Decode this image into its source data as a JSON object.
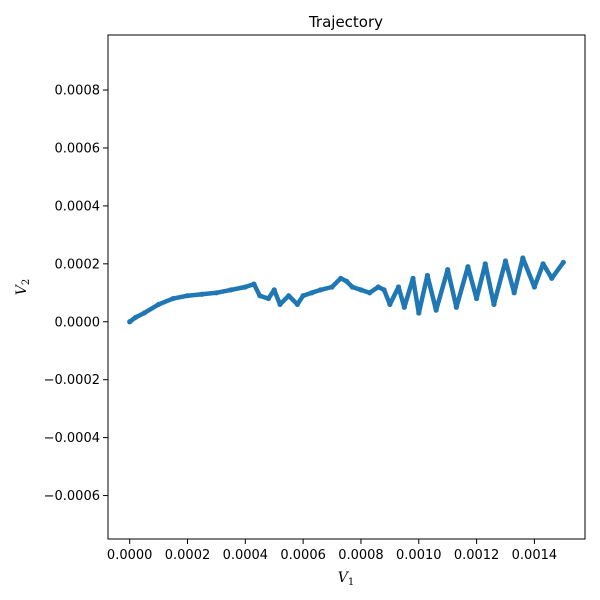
{
  "chart_data": {
    "type": "line",
    "title": "Trajectory",
    "xlabel": "V",
    "xlabel_sub": "1",
    "ylabel": "V",
    "ylabel_sub": "2",
    "xlim": [
      -7.5e-05,
      0.001575
    ],
    "ylim": [
      -0.00075,
      0.00099
    ],
    "xticks": [
      "0.0000",
      "0.0002",
      "0.0004",
      "0.0006",
      "0.0008",
      "0.0010",
      "0.0012",
      "0.0014"
    ],
    "yticks": [
      "−0.0006",
      "−0.0004",
      "−0.0002",
      "0.0000",
      "0.0002",
      "0.0004",
      "0.0006",
      "0.0008"
    ],
    "grid": false,
    "series": [
      {
        "color": "#1f77b4",
        "x": [
          0.0,
          2e-05,
          5e-05,
          0.0001,
          0.00015,
          0.0002,
          0.00025,
          0.0003,
          0.00035,
          0.0004,
          0.00043,
          0.00045,
          0.00048,
          0.0005,
          0.00052,
          0.00055,
          0.00058,
          0.0006,
          0.00063,
          0.00066,
          0.0007,
          0.00073,
          0.00075,
          0.00077,
          0.0008,
          0.00083,
          0.00086,
          0.00088,
          0.0009,
          0.00093,
          0.00095,
          0.00098,
          0.001,
          0.00103,
          0.00106,
          0.0011,
          0.00113,
          0.00117,
          0.0012,
          0.00123,
          0.00126,
          0.0013,
          0.00133,
          0.00136,
          0.0014,
          0.00143,
          0.00146,
          0.0015
        ],
        "y": [
          0.0,
          1.5e-05,
          3e-05,
          6e-05,
          8e-05,
          9e-05,
          9.5e-05,
          0.0001,
          0.00011,
          0.00012,
          0.00013,
          9e-05,
          8e-05,
          0.00011,
          6e-05,
          9e-05,
          6e-05,
          9e-05,
          0.0001,
          0.00011,
          0.00012,
          0.00015,
          0.00014,
          0.00012,
          0.00011,
          0.0001,
          0.00012,
          0.00011,
          6e-05,
          0.00012,
          5e-05,
          0.00015,
          3e-05,
          0.00016,
          4e-05,
          0.00018,
          5e-05,
          0.00019,
          8e-05,
          0.0002,
          6e-05,
          0.00021,
          0.0001,
          0.00022,
          0.00012,
          0.0002,
          0.00015,
          0.000205
        ]
      }
    ]
  }
}
